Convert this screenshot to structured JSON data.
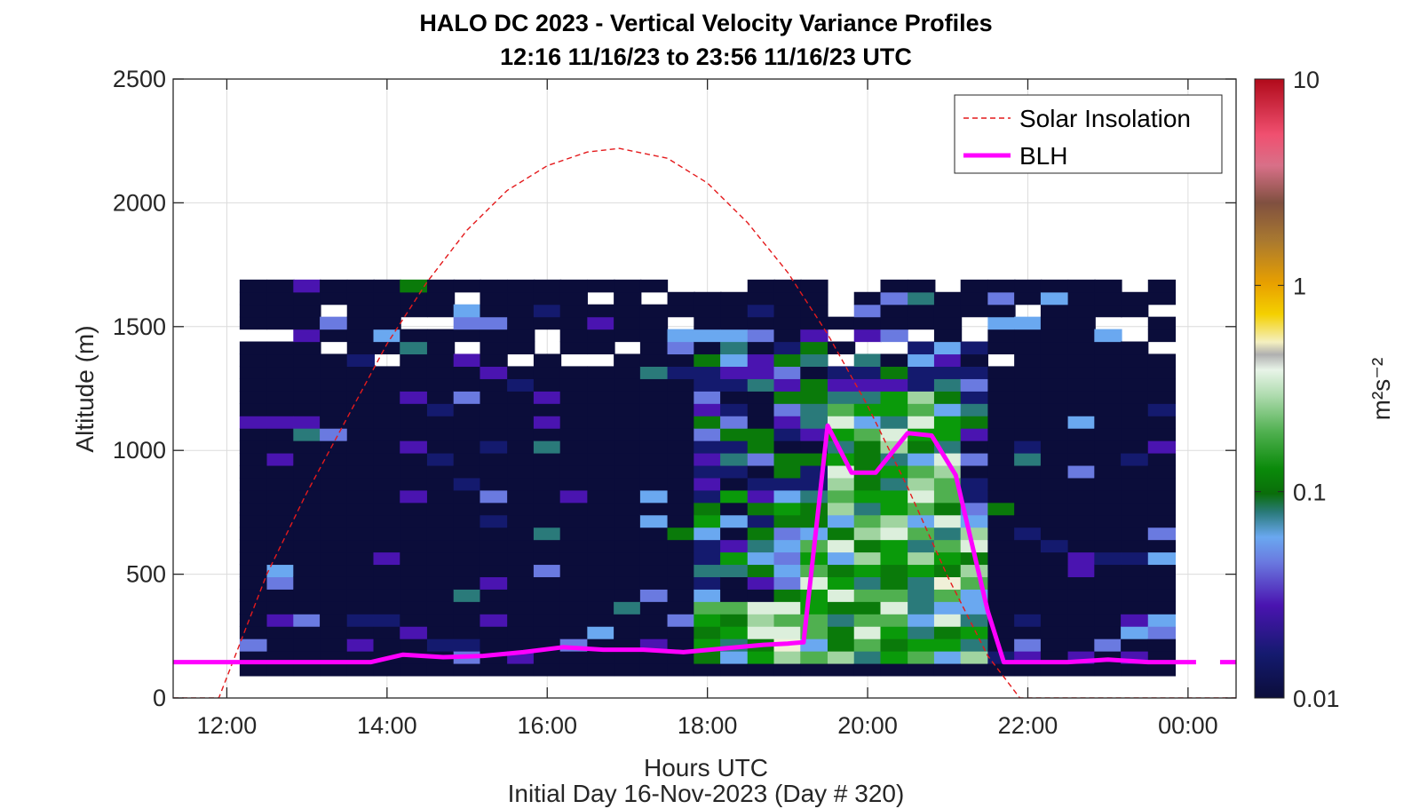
{
  "title": "HALO DC 2023 - Vertical Velocity Variance Profiles",
  "subtitle": "12:16 11/16/23 to 23:56 11/16/23  UTC",
  "footer": "Initial Day 16-Nov-2023 (Day # 320)",
  "colors": {
    "background": "#ffffff",
    "blh": "#ff00ff",
    "solar": "#e41a1c",
    "axis": "#262626",
    "grid": "#dcdcdc"
  },
  "chart_data": {
    "type": "heatmap",
    "xlabel": "Hours UTC",
    "ylabel": "Altitude (m)",
    "xlim": [
      11.33,
      24.6
    ],
    "ylim": [
      0,
      2500
    ],
    "grid": true,
    "legend_position": "top-right",
    "x_ticks": [
      {
        "value": 12,
        "label": "12:00"
      },
      {
        "value": 14,
        "label": "14:00"
      },
      {
        "value": 16,
        "label": "16:00"
      },
      {
        "value": 18,
        "label": "18:00"
      },
      {
        "value": 20,
        "label": "20:00"
      },
      {
        "value": 22,
        "label": "22:00"
      },
      {
        "value": 24,
        "label": "00:00"
      }
    ],
    "y_ticks": [
      0,
      500,
      1000,
      1500,
      2000,
      2500
    ],
    "colorbar": {
      "label": "m²s⁻²",
      "scale": "log",
      "range": [
        0.01,
        10
      ],
      "ticks": [
        "0.01",
        "0.1",
        "1",
        "10"
      ]
    },
    "legend": [
      "Solar Insolation",
      "BLH"
    ],
    "time_bins": [
      12.33,
      12.67,
      13.0,
      13.33,
      13.67,
      14.0,
      14.33,
      14.67,
      15.0,
      15.33,
      15.67,
      16.0,
      16.33,
      16.67,
      17.0,
      17.33,
      17.67,
      18.0,
      18.33,
      18.67,
      19.0,
      19.33,
      19.67,
      20.0,
      20.33,
      20.67,
      21.0,
      21.33,
      21.67,
      22.0,
      22.33,
      22.67,
      23.0,
      23.33,
      23.67
    ],
    "altitude_range": [
      90,
      1670
    ],
    "series": [
      {
        "name": "BLH",
        "x": [
          11.33,
          13.8,
          14.2,
          14.7,
          15.2,
          15.7,
          16.2,
          16.7,
          17.2,
          17.7,
          18.2,
          18.7,
          19.0,
          19.2,
          19.5,
          19.8,
          20.1,
          20.5,
          20.8,
          21.1,
          21.5,
          21.7,
          22.0,
          22.5,
          23.0,
          23.5,
          24.1
        ],
        "y": [
          145,
          145,
          175,
          165,
          170,
          185,
          205,
          195,
          195,
          185,
          200,
          215,
          220,
          225,
          1100,
          910,
          910,
          1070,
          1060,
          900,
          350,
          145,
          145,
          145,
          155,
          145,
          145
        ]
      },
      {
        "name": "Solar Insolation",
        "x": [
          11.33,
          11.9,
          12.5,
          13.0,
          13.5,
          14.0,
          14.5,
          15.0,
          15.5,
          16.0,
          16.5,
          16.9,
          17.5,
          18.0,
          18.5,
          19.0,
          19.5,
          20.0,
          20.5,
          21.0,
          21.5,
          21.9,
          22.5,
          23.5,
          24.6
        ],
        "y": [
          0,
          0,
          500,
          830,
          1130,
          1430,
          1680,
          1890,
          2050,
          2150,
          2205,
          2220,
          2180,
          2080,
          1920,
          1720,
          1470,
          1180,
          850,
          490,
          170,
          0,
          0,
          0,
          0
        ]
      }
    ]
  }
}
